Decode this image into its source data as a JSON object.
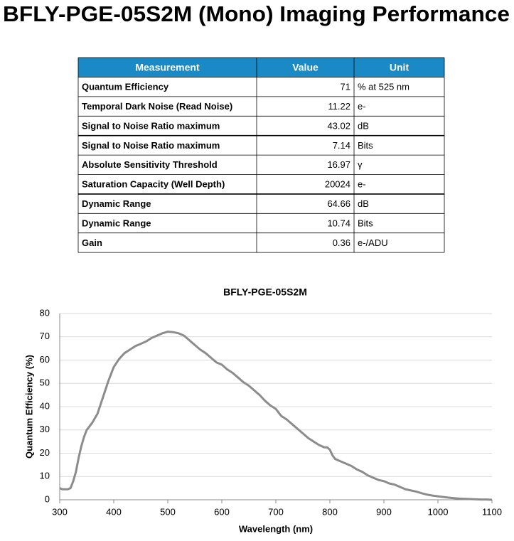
{
  "header": {
    "title": "BFLY-PGE-05S2M (Mono) Imaging Performance"
  },
  "table": {
    "header": [
      "Measurement",
      "Value",
      "Unit"
    ],
    "rows": [
      [
        "Quantum Efficiency",
        71,
        "% at 525 nm"
      ],
      [
        "Temporal Dark Noise (Read Noise)",
        11.22,
        "e-"
      ],
      [
        "Signal to Noise Ratio maximum",
        43.02,
        "dB"
      ],
      [
        "Signal to Noise Ratio maximum",
        7.14,
        "Bits"
      ],
      [
        "Absolute Sensitivity Threshold",
        16.97,
        "γ"
      ],
      [
        "Saturation Capacity (Well Depth)",
        20024,
        "e-"
      ],
      [
        "Dynamic Range",
        64.66,
        "dB"
      ],
      [
        "Dynamic Range",
        10.74,
        "Bits"
      ],
      [
        "Gain",
        0.36,
        "e-/ADU"
      ]
    ]
  },
  "chart_data": {
    "type": "line",
    "title": "BFLY-PGE-05S2M",
    "x_label": "Wavelength (nm)",
    "y_label": "Quantum Efficiency (%)",
    "x": [
      300,
      305,
      315,
      320,
      325,
      330,
      335,
      340,
      345,
      350,
      360,
      370,
      380,
      390,
      400,
      410,
      420,
      430,
      440,
      450,
      460,
      470,
      480,
      490,
      500,
      510,
      520,
      530,
      540,
      550,
      560,
      570,
      580,
      590,
      600,
      610,
      620,
      630,
      640,
      650,
      660,
      670,
      680,
      690,
      700,
      710,
      720,
      730,
      740,
      750,
      760,
      770,
      780,
      790,
      795,
      800,
      805,
      810,
      820,
      830,
      840,
      850,
      860,
      870,
      880,
      890,
      900,
      910,
      920,
      930,
      940,
      950,
      960,
      970,
      980,
      990,
      1000,
      1010,
      1020,
      1030,
      1040,
      1050,
      1060,
      1070,
      1080,
      1090,
      1100
    ],
    "series": [
      {
        "name": "Quantum Efficiency",
        "color": "#8c8c8c",
        "values": [
          5,
          4.5,
          4.5,
          5,
          8,
          12,
          18,
          23,
          27,
          30,
          33,
          37,
          44,
          51,
          57,
          60.5,
          63,
          64.5,
          66,
          67,
          68,
          69.5,
          70.5,
          71.5,
          72.2,
          72,
          71.5,
          70.5,
          68.5,
          66.5,
          64.5,
          63,
          61,
          59,
          58,
          56,
          54.5,
          52.5,
          50.5,
          49,
          47,
          45,
          42.5,
          40.5,
          39,
          36,
          34.5,
          32.5,
          30.5,
          28.5,
          26.5,
          25,
          23.5,
          22.5,
          22.5,
          21.5,
          19,
          17.5,
          16.5,
          15.5,
          14.5,
          13,
          12,
          10.5,
          9.5,
          8.5,
          8,
          7,
          6.5,
          5.5,
          4.5,
          4,
          3.5,
          2.8,
          2.2,
          1.8,
          1.5,
          1.2,
          0.9,
          0.7,
          0.5,
          0.4,
          0.3,
          0.2,
          0.1,
          0.1,
          0
        ]
      }
    ],
    "xlim": [
      300,
      1100
    ],
    "xticks": [
      300,
      400,
      500,
      600,
      700,
      800,
      900,
      1000,
      1100
    ],
    "ylim": [
      0,
      80
    ],
    "yticks": [
      0,
      10,
      20,
      30,
      40,
      50,
      60,
      70,
      80
    ],
    "grid": true,
    "header_color": "#1a8ac6"
  }
}
